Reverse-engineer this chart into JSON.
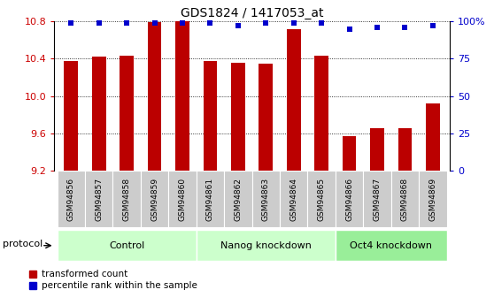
{
  "title": "GDS1824 / 1417053_at",
  "samples": [
    "GSM94856",
    "GSM94857",
    "GSM94858",
    "GSM94859",
    "GSM94860",
    "GSM94861",
    "GSM94862",
    "GSM94863",
    "GSM94864",
    "GSM94865",
    "GSM94866",
    "GSM94867",
    "GSM94868",
    "GSM94869"
  ],
  "bar_values": [
    10.38,
    10.42,
    10.43,
    10.79,
    10.8,
    10.38,
    10.36,
    10.35,
    10.72,
    10.43,
    9.57,
    9.66,
    9.66,
    9.92
  ],
  "percentile_values": [
    99,
    99,
    99,
    99,
    99,
    99,
    97,
    99,
    99,
    99,
    95,
    96,
    96,
    97
  ],
  "bar_color": "#BB0000",
  "dot_color": "#0000CC",
  "ylim_left": [
    9.2,
    10.8
  ],
  "ylim_right": [
    0,
    100
  ],
  "yticks_left": [
    9.2,
    9.6,
    10.0,
    10.4,
    10.8
  ],
  "yticks_right": [
    0,
    25,
    50,
    75,
    100
  ],
  "groups": [
    {
      "label": "Control",
      "start": 0,
      "end": 5
    },
    {
      "label": "Nanog knockdown",
      "start": 5,
      "end": 10
    },
    {
      "label": "Oct4 knockdown",
      "start": 10,
      "end": 14
    }
  ],
  "group_colors": [
    "#CCFFCC",
    "#CCFFCC",
    "#99EE99"
  ],
  "protocol_label": "protocol",
  "legend_red": "transformed count",
  "legend_blue": "percentile rank within the sample",
  "tick_label_color_left": "#CC0000",
  "tick_label_color_right": "#0000CC",
  "sample_box_color": "#CCCCCC",
  "bar_width": 0.5
}
